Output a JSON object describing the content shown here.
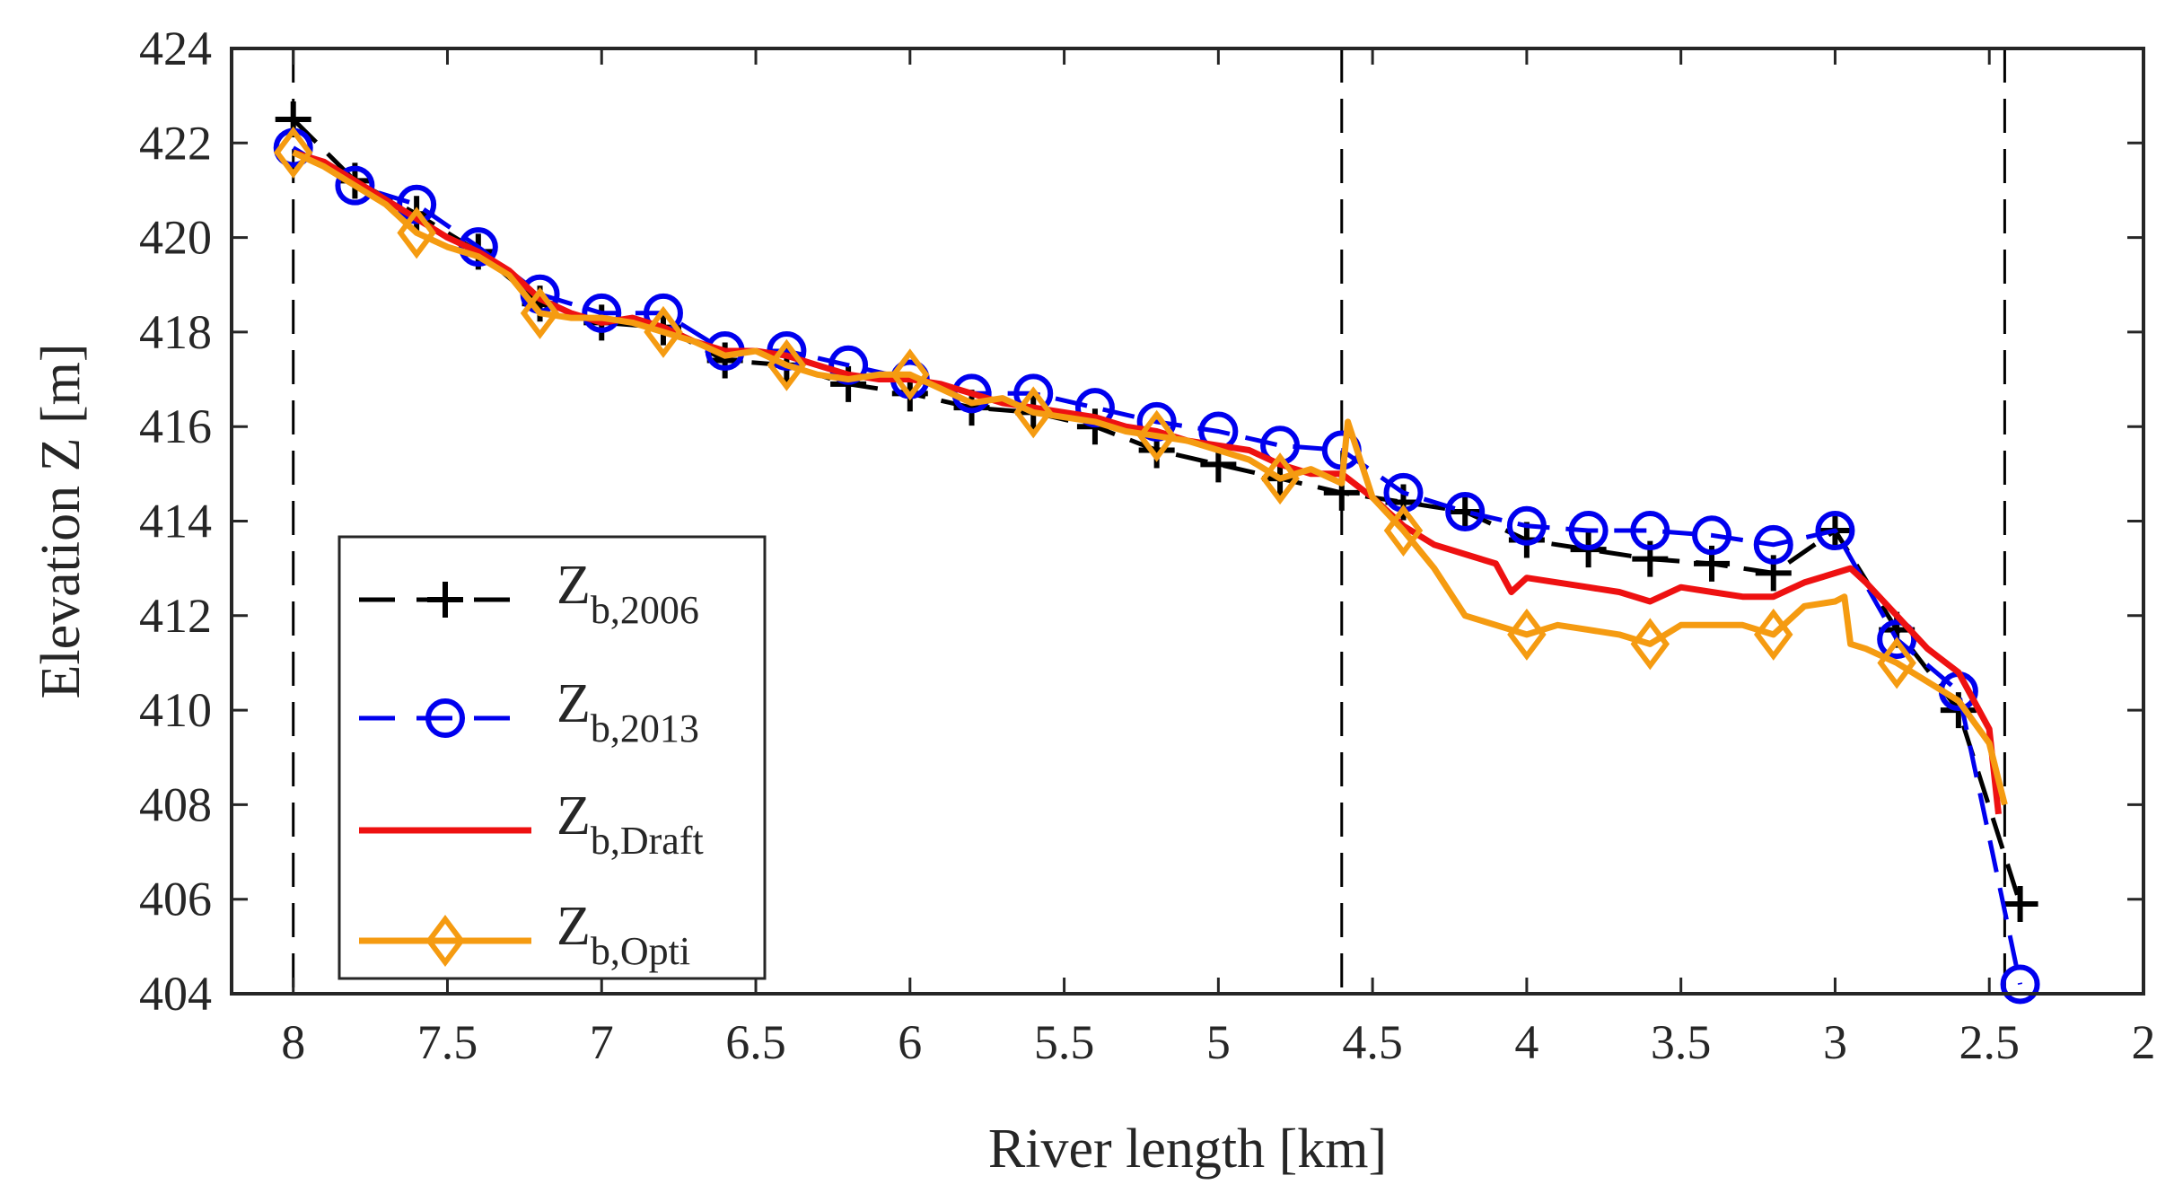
{
  "chart_data": {
    "type": "line",
    "title": "",
    "xlabel": "River length [km]",
    "ylabel": "Elevation Z [m]",
    "xlim": [
      8.2,
      2.0
    ],
    "ylim": [
      404,
      424
    ],
    "x_reversed": true,
    "xticks": [
      8,
      7.5,
      7,
      6.5,
      6,
      5.5,
      5,
      4.5,
      4,
      3.5,
      3,
      2.5,
      2
    ],
    "xtick_labels": [
      "8",
      "7.5",
      "7",
      "6.5",
      "6",
      "5.5",
      "5",
      "4.5",
      "4",
      "3.5",
      "3",
      "2.5",
      "2"
    ],
    "yticks": [
      404,
      406,
      408,
      410,
      412,
      414,
      416,
      418,
      420,
      422,
      424
    ],
    "ytick_labels": [
      "404",
      "406",
      "408",
      "410",
      "412",
      "414",
      "416",
      "418",
      "420",
      "422",
      "424"
    ],
    "grid": false,
    "vertical_reference_lines": [
      8.0,
      4.6,
      2.45
    ],
    "legend": {
      "position": "bottom-left"
    },
    "series": [
      {
        "name": "Z",
        "subscript": "b,2006",
        "color": "#000000",
        "line": "dashed",
        "marker": "plus",
        "x": [
          8.0,
          7.8,
          7.6,
          7.4,
          7.2,
          7.0,
          6.8,
          6.6,
          6.4,
          6.2,
          6.0,
          5.8,
          5.6,
          5.4,
          5.2,
          5.0,
          4.8,
          4.6,
          4.4,
          4.2,
          4.0,
          3.8,
          3.6,
          3.4,
          3.2,
          3.0,
          2.8,
          2.6,
          2.4
        ],
        "values": [
          422.5,
          421.2,
          420.5,
          419.7,
          418.6,
          418.2,
          418.1,
          417.4,
          417.3,
          416.9,
          416.7,
          416.4,
          416.3,
          416.0,
          415.5,
          415.2,
          414.9,
          414.6,
          414.4,
          414.2,
          413.6,
          413.4,
          413.2,
          413.1,
          412.9,
          413.8,
          411.7,
          410.0,
          405.9
        ]
      },
      {
        "name": "Z",
        "subscript": "b,2013",
        "color": "#0000ee",
        "line": "dashed",
        "marker": "circle",
        "x": [
          8.0,
          7.8,
          7.6,
          7.4,
          7.2,
          7.0,
          6.8,
          6.6,
          6.4,
          6.2,
          6.0,
          5.8,
          5.6,
          5.4,
          5.2,
          5.0,
          4.8,
          4.6,
          4.4,
          4.2,
          4.0,
          3.8,
          3.6,
          3.4,
          3.2,
          3.0,
          2.8,
          2.6,
          2.4
        ],
        "values": [
          421.9,
          421.1,
          420.7,
          419.8,
          418.8,
          418.4,
          418.4,
          417.6,
          417.6,
          417.3,
          417.0,
          416.7,
          416.7,
          416.4,
          416.1,
          415.9,
          415.6,
          415.5,
          414.6,
          414.2,
          413.9,
          413.8,
          413.8,
          413.7,
          413.5,
          413.8,
          411.5,
          410.4,
          404.2
        ]
      },
      {
        "name": "Z",
        "subscript": "b,Draft",
        "color": "#ee1111",
        "line": "solid",
        "marker": "none",
        "x": [
          8.0,
          7.9,
          7.8,
          7.7,
          7.6,
          7.5,
          7.4,
          7.3,
          7.2,
          7.1,
          7.0,
          6.9,
          6.8,
          6.7,
          6.6,
          6.5,
          6.4,
          6.3,
          6.2,
          6.1,
          6.0,
          5.9,
          5.8,
          5.7,
          5.6,
          5.5,
          5.4,
          5.3,
          5.2,
          5.1,
          5.0,
          4.9,
          4.8,
          4.7,
          4.6,
          4.5,
          4.4,
          4.3,
          4.2,
          4.1,
          4.05,
          4.0,
          3.9,
          3.8,
          3.7,
          3.6,
          3.5,
          3.4,
          3.3,
          3.2,
          3.1,
          3.0,
          2.95,
          2.9,
          2.8,
          2.7,
          2.6,
          2.5,
          2.47
        ],
        "values": [
          421.8,
          421.6,
          421.2,
          420.8,
          420.4,
          420.0,
          419.7,
          419.3,
          418.7,
          418.4,
          418.2,
          418.3,
          418.1,
          417.8,
          417.6,
          417.6,
          417.5,
          417.3,
          417.1,
          417.0,
          417.0,
          416.9,
          416.7,
          416.5,
          416.4,
          416.3,
          416.2,
          416.0,
          415.9,
          415.7,
          415.6,
          415.5,
          415.2,
          415.0,
          415.0,
          414.5,
          413.9,
          413.5,
          413.3,
          413.1,
          412.5,
          412.8,
          412.7,
          412.6,
          412.5,
          412.3,
          412.6,
          412.5,
          412.4,
          412.4,
          412.7,
          412.9,
          413.0,
          412.7,
          412.0,
          411.3,
          410.8,
          409.6,
          407.8
        ]
      },
      {
        "name": "Z",
        "subscript": "b,Opti",
        "color": "#f59b11",
        "line": "solid",
        "marker": "diamond",
        "x": [
          8.0,
          7.9,
          7.8,
          7.7,
          7.6,
          7.5,
          7.4,
          7.3,
          7.2,
          7.1,
          7.0,
          6.9,
          6.8,
          6.7,
          6.6,
          6.5,
          6.4,
          6.3,
          6.2,
          6.1,
          6.0,
          5.9,
          5.8,
          5.7,
          5.6,
          5.5,
          5.4,
          5.3,
          5.2,
          5.1,
          5.0,
          4.9,
          4.8,
          4.7,
          4.6,
          4.58,
          4.5,
          4.4,
          4.3,
          4.2,
          4.1,
          4.0,
          3.9,
          3.8,
          3.7,
          3.6,
          3.5,
          3.4,
          3.3,
          3.2,
          3.1,
          3.0,
          2.97,
          2.95,
          2.9,
          2.8,
          2.7,
          2.6,
          2.5,
          2.45
        ],
        "values": [
          421.8,
          421.5,
          421.1,
          420.7,
          420.1,
          419.8,
          419.6,
          419.2,
          418.4,
          418.3,
          418.3,
          418.2,
          418.0,
          417.8,
          417.5,
          417.6,
          417.3,
          417.1,
          417.0,
          417.1,
          417.1,
          416.8,
          416.5,
          416.6,
          416.3,
          416.2,
          416.1,
          415.9,
          415.8,
          415.7,
          415.5,
          415.3,
          414.9,
          415.1,
          414.8,
          416.1,
          414.5,
          413.8,
          413.0,
          412.0,
          411.8,
          411.6,
          411.8,
          411.7,
          411.6,
          411.4,
          411.8,
          411.8,
          411.8,
          411.6,
          412.2,
          412.3,
          412.4,
          411.4,
          411.3,
          411.0,
          410.6,
          410.2,
          409.3,
          408.0
        ]
      }
    ],
    "marker_points": {
      "Z_b,Opti": {
        "x": [
          8.0,
          7.6,
          7.2,
          6.8,
          6.4,
          6.0,
          5.6,
          5.2,
          4.8,
          4.4,
          4.0,
          3.6,
          3.2,
          2.8
        ],
        "values": [
          421.8,
          420.1,
          418.4,
          418.0,
          417.3,
          417.1,
          416.3,
          415.8,
          414.9,
          413.8,
          411.6,
          411.4,
          411.6,
          411.0
        ]
      }
    }
  }
}
